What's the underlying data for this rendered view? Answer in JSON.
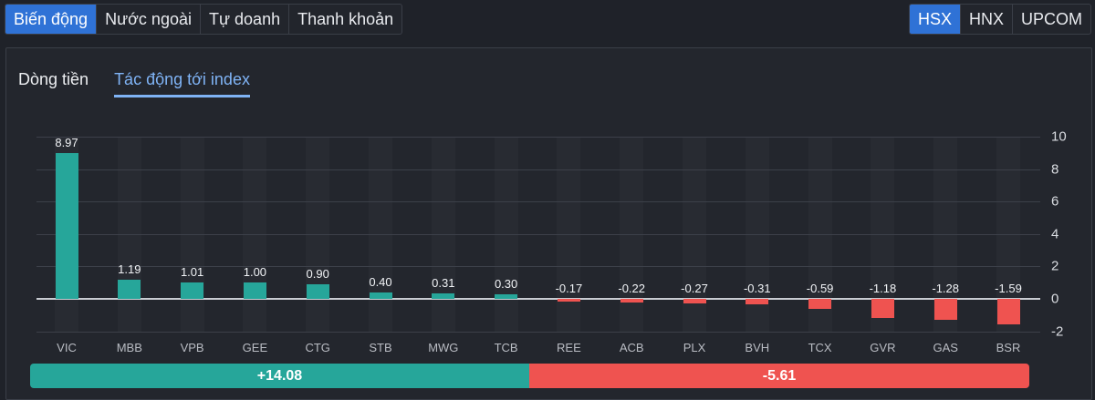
{
  "top_tabs": [
    {
      "label": "Biến động",
      "active": true
    },
    {
      "label": "Nước ngoài",
      "active": false
    },
    {
      "label": "Tự doanh",
      "active": false
    },
    {
      "label": "Thanh khoản",
      "active": false
    }
  ],
  "exchange_tabs": [
    {
      "label": "HSX",
      "active": true
    },
    {
      "label": "HNX",
      "active": false
    },
    {
      "label": "UPCOM",
      "active": false
    }
  ],
  "sub_tabs": [
    {
      "label": "Dòng tiền",
      "active": false
    },
    {
      "label": "Tác động tới index",
      "active": true
    }
  ],
  "colors": {
    "positive": "#26a69a",
    "negative": "#ef5350",
    "accent": "#2f72d6",
    "active_subtab": "#7fb3f5"
  },
  "summary": {
    "positive_label": "+14.08",
    "negative_label": "-5.61",
    "positive_total": 14.08,
    "negative_total": -5.61
  },
  "chart_data": {
    "type": "bar",
    "title": "Tác động tới index",
    "xlabel": "",
    "ylabel": "",
    "categories": [
      "VIC",
      "MBB",
      "VPB",
      "GEE",
      "CTG",
      "STB",
      "MWG",
      "TCB",
      "REE",
      "ACB",
      "PLX",
      "BVH",
      "TCX",
      "GVR",
      "GAS",
      "BSR"
    ],
    "values": [
      8.97,
      1.19,
      1.01,
      1.0,
      0.9,
      0.4,
      0.31,
      0.3,
      -0.17,
      -0.22,
      -0.27,
      -0.31,
      -0.59,
      -1.18,
      -1.28,
      -1.59
    ],
    "value_labels": [
      "8.97",
      "1.19",
      "1.01",
      "1.00",
      "0.90",
      "0.40",
      "0.31",
      "0.30",
      "-0.17",
      "-0.22",
      "-0.27",
      "-0.31",
      "-0.59",
      "-1.18",
      "-1.28",
      "-1.59"
    ],
    "ylim": [
      -2,
      10
    ],
    "yticks": [
      10,
      8,
      6,
      4,
      2,
      0,
      -2
    ],
    "ytick_labels": [
      "10",
      "8",
      "6",
      "4",
      "2",
      "0",
      "-2"
    ],
    "grid": true,
    "y_axis_position": "right",
    "legend": null
  }
}
